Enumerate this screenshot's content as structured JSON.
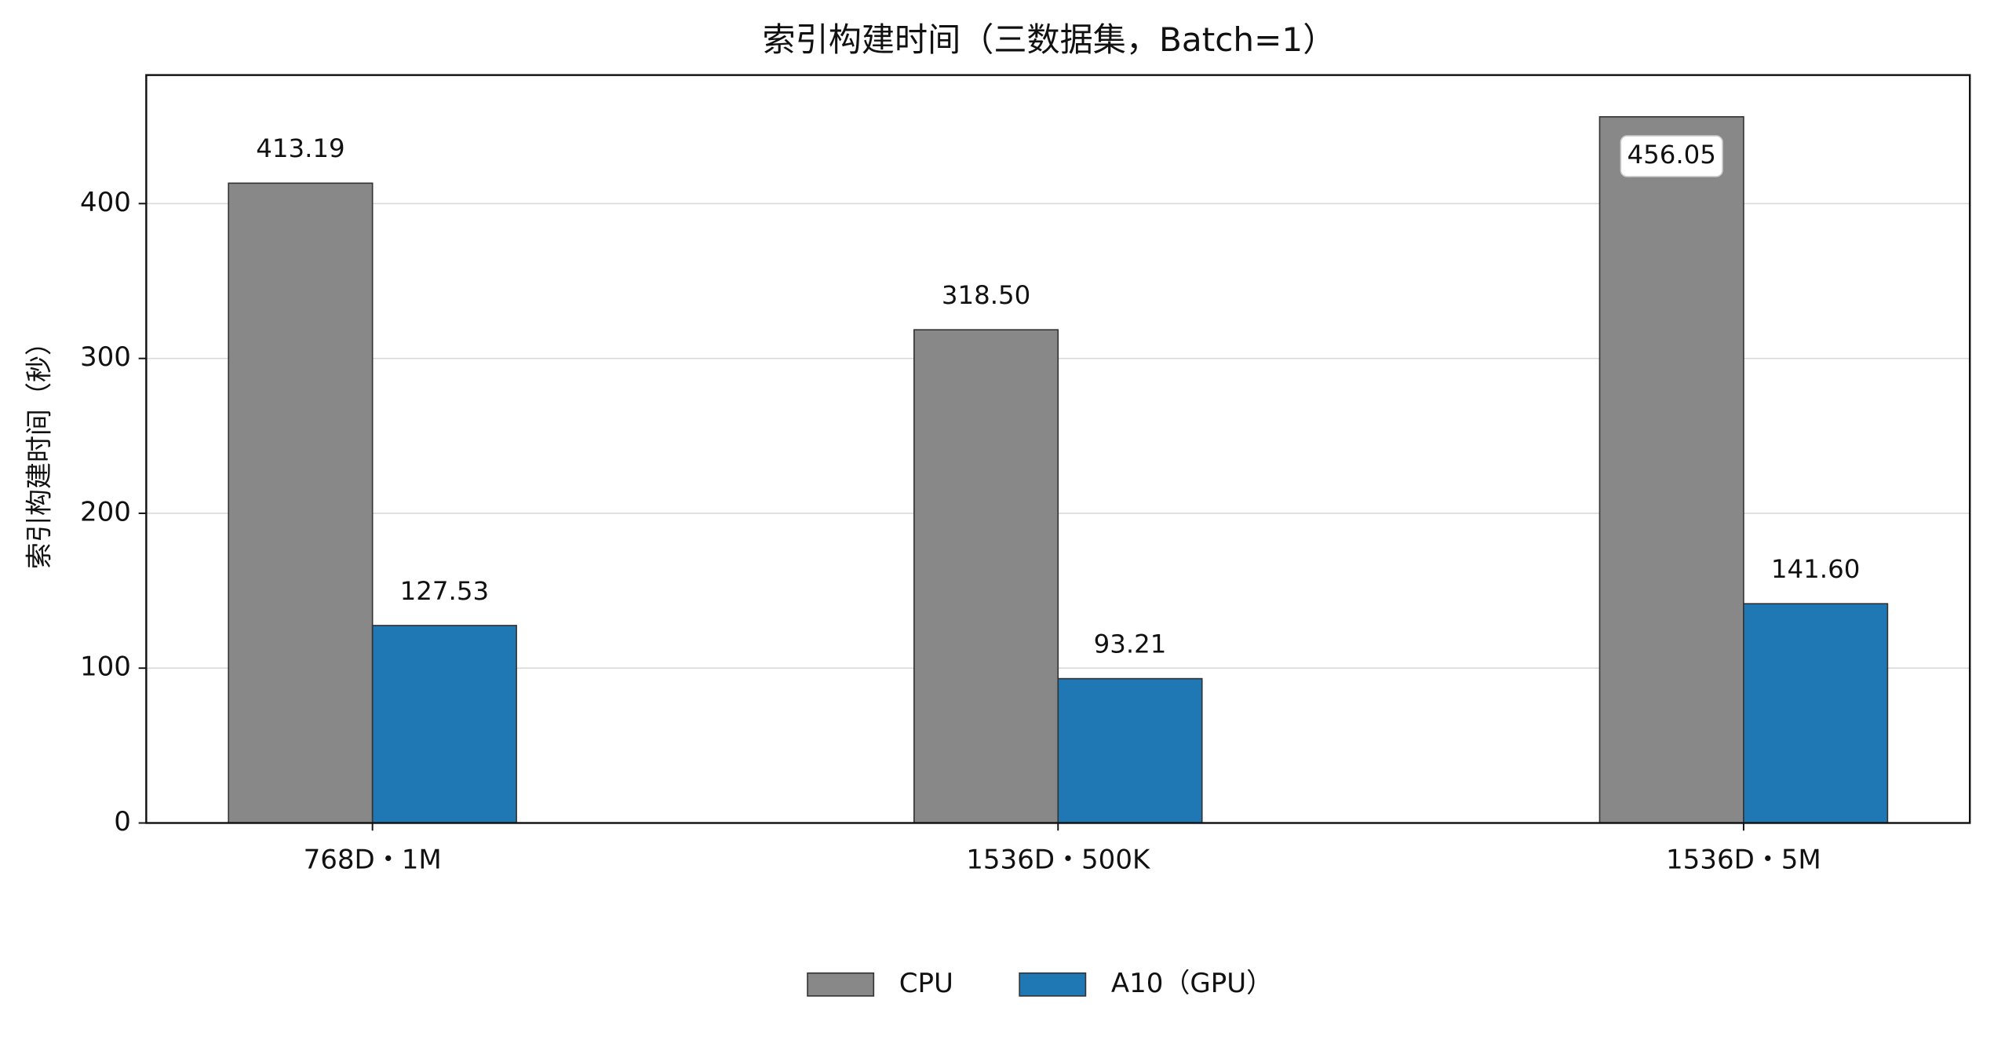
{
  "chart_data": {
    "type": "bar",
    "title": "索引构建时间（三数据集，Batch=1）",
    "y_label": "索引构建时间（秒）",
    "categories": [
      "768D・1M",
      "1536D・500K",
      "1536D・5M"
    ],
    "series": [
      {
        "name": "CPU",
        "color": "#888888",
        "values": [
          413.19,
          318.5,
          456.05
        ],
        "value_labels": [
          "413.19",
          "318.50",
          "456.05"
        ]
      },
      {
        "name": "A10（GPU）",
        "color": "#1f77b4",
        "values": [
          127.53,
          93.21,
          141.6
        ],
        "value_labels": [
          "127.53",
          "93.21",
          "141.60"
        ]
      }
    ],
    "ylim": [
      0,
      483
    ],
    "yticks": [
      0,
      100,
      200,
      300,
      400
    ],
    "grid": true,
    "legend": "bottom"
  }
}
